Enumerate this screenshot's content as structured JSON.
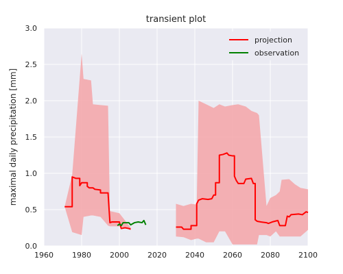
{
  "chart_data": {
    "type": "line",
    "title": "transient plot",
    "xlabel": "",
    "ylabel": "maximal daily precipitation [mm]",
    "xlim": [
      1960,
      2100
    ],
    "ylim": [
      0.0,
      3.0
    ],
    "xticks": [
      "1960",
      "1980",
      "2000",
      "2020",
      "2040",
      "2060",
      "2080",
      "2100"
    ],
    "yticks": [
      "0.0",
      "0.5",
      "1.0",
      "1.5",
      "2.0",
      "2.5",
      "3.0"
    ],
    "grid": true,
    "legend_position": "top-right",
    "colors": {
      "background": "#eaeaf2",
      "grid": "#ffffff",
      "projection": "#ff0000",
      "observation": "#008000",
      "band": "#f4a4a8"
    },
    "series": [
      {
        "name": "projection",
        "color": "#ff0000",
        "segments": [
          [
            [
              1971,
              0.54
            ],
            [
              1975,
              0.54
            ],
            [
              1975,
              0.95
            ],
            [
              1977,
              0.93
            ],
            [
              1979,
              0.93
            ],
            [
              1979,
              0.83
            ],
            [
              1980,
              0.87
            ],
            [
              1983,
              0.87
            ],
            [
              1983,
              0.82
            ],
            [
              1984,
              0.8
            ],
            [
              1986,
              0.8
            ],
            [
              1987,
              0.78
            ],
            [
              1990,
              0.77
            ],
            [
              1990,
              0.73
            ],
            [
              1994,
              0.73
            ],
            [
              1995,
              0.32
            ],
            [
              1996,
              0.33
            ],
            [
              1998,
              0.33
            ],
            [
              2000,
              0.33
            ],
            [
              2001,
              0.24
            ],
            [
              2003,
              0.25
            ],
            [
              2005,
              0.24
            ],
            [
              2006,
              0.23
            ]
          ],
          [
            [
              2030,
              0.26
            ],
            [
              2033,
              0.26
            ],
            [
              2034,
              0.23
            ],
            [
              2036,
              0.23
            ],
            [
              2038,
              0.23
            ],
            [
              2038,
              0.28
            ],
            [
              2041,
              0.28
            ],
            [
              2041,
              0.58
            ],
            [
              2042,
              0.63
            ],
            [
              2044,
              0.65
            ],
            [
              2047,
              0.64
            ],
            [
              2049,
              0.65
            ],
            [
              2050,
              0.7
            ],
            [
              2051,
              0.7
            ],
            [
              2051,
              0.87
            ],
            [
              2053,
              0.87
            ],
            [
              2053,
              1.25
            ],
            [
              2055,
              1.26
            ],
            [
              2057,
              1.28
            ],
            [
              2058,
              1.25
            ],
            [
              2060,
              1.24
            ],
            [
              2061,
              1.24
            ],
            [
              2061,
              0.96
            ],
            [
              2062,
              0.9
            ],
            [
              2063,
              0.86
            ],
            [
              2066,
              0.86
            ],
            [
              2067,
              0.92
            ],
            [
              2070,
              0.93
            ],
            [
              2071,
              0.86
            ],
            [
              2072,
              0.86
            ],
            [
              2072,
              0.36
            ],
            [
              2073,
              0.34
            ],
            [
              2075,
              0.33
            ],
            [
              2078,
              0.32
            ],
            [
              2079,
              0.31
            ],
            [
              2081,
              0.33
            ],
            [
              2084,
              0.35
            ],
            [
              2085,
              0.28
            ],
            [
              2088,
              0.28
            ],
            [
              2089,
              0.41
            ],
            [
              2090,
              0.4
            ],
            [
              2091,
              0.43
            ],
            [
              2095,
              0.44
            ],
            [
              2097,
              0.43
            ],
            [
              2099,
              0.47
            ],
            [
              2100,
              0.46
            ]
          ]
        ]
      },
      {
        "name": "observation",
        "color": "#008000",
        "segments": [
          [
            [
              1999,
              0.28
            ],
            [
              2000,
              0.3
            ],
            [
              2001,
              0.28
            ],
            [
              2002,
              0.32
            ],
            [
              2005,
              0.32
            ],
            [
              2006,
              0.29
            ],
            [
              2008,
              0.32
            ],
            [
              2010,
              0.33
            ],
            [
              2012,
              0.32
            ],
            [
              2013,
              0.35
            ],
            [
              2014,
              0.29
            ]
          ]
        ]
      }
    ],
    "bands": [
      {
        "segments": [
          [
            [
              1971,
              0.54,
              0.54
            ],
            [
              1975,
              0.98,
              0.19
            ],
            [
              1980,
              2.65,
              0.15
            ],
            [
              1981,
              2.3,
              0.4
            ],
            [
              1985,
              2.28,
              0.42
            ],
            [
              1986,
              1.95,
              0.42
            ],
            [
              1990,
              1.94,
              0.4
            ],
            [
              1994,
              1.93,
              0.28
            ],
            [
              1995,
              0.48,
              0.27
            ],
            [
              2000,
              0.45,
              0.27
            ],
            [
              2006,
              0.25,
              0.22
            ]
          ],
          [
            [
              2030,
              0.58,
              0.13
            ],
            [
              2034,
              0.55,
              0.12
            ],
            [
              2038,
              0.58,
              0.08
            ],
            [
              2041,
              0.57,
              0.1
            ],
            [
              2042,
              2.0,
              0.1
            ],
            [
              2046,
              1.95,
              0.05
            ],
            [
              2050,
              1.9,
              0.05
            ],
            [
              2053,
              1.95,
              0.2
            ],
            [
              2056,
              1.92,
              0.2
            ],
            [
              2060,
              1.94,
              0.02
            ],
            [
              2063,
              1.95,
              0.02
            ],
            [
              2067,
              1.92,
              0.02
            ],
            [
              2070,
              1.86,
              0.02
            ],
            [
              2073,
              1.83,
              0.02
            ],
            [
              2074,
              1.8,
              0.15
            ],
            [
              2078,
              0.55,
              0.15
            ],
            [
              2080,
              0.66,
              0.13
            ],
            [
              2083,
              0.7,
              0.2
            ],
            [
              2085,
              0.75,
              0.13
            ],
            [
              2086,
              0.91,
              0.13
            ],
            [
              2090,
              0.92,
              0.13
            ],
            [
              2093,
              0.85,
              0.13
            ],
            [
              2096,
              0.8,
              0.13
            ],
            [
              2100,
              0.78,
              0.22
            ]
          ]
        ]
      }
    ]
  }
}
